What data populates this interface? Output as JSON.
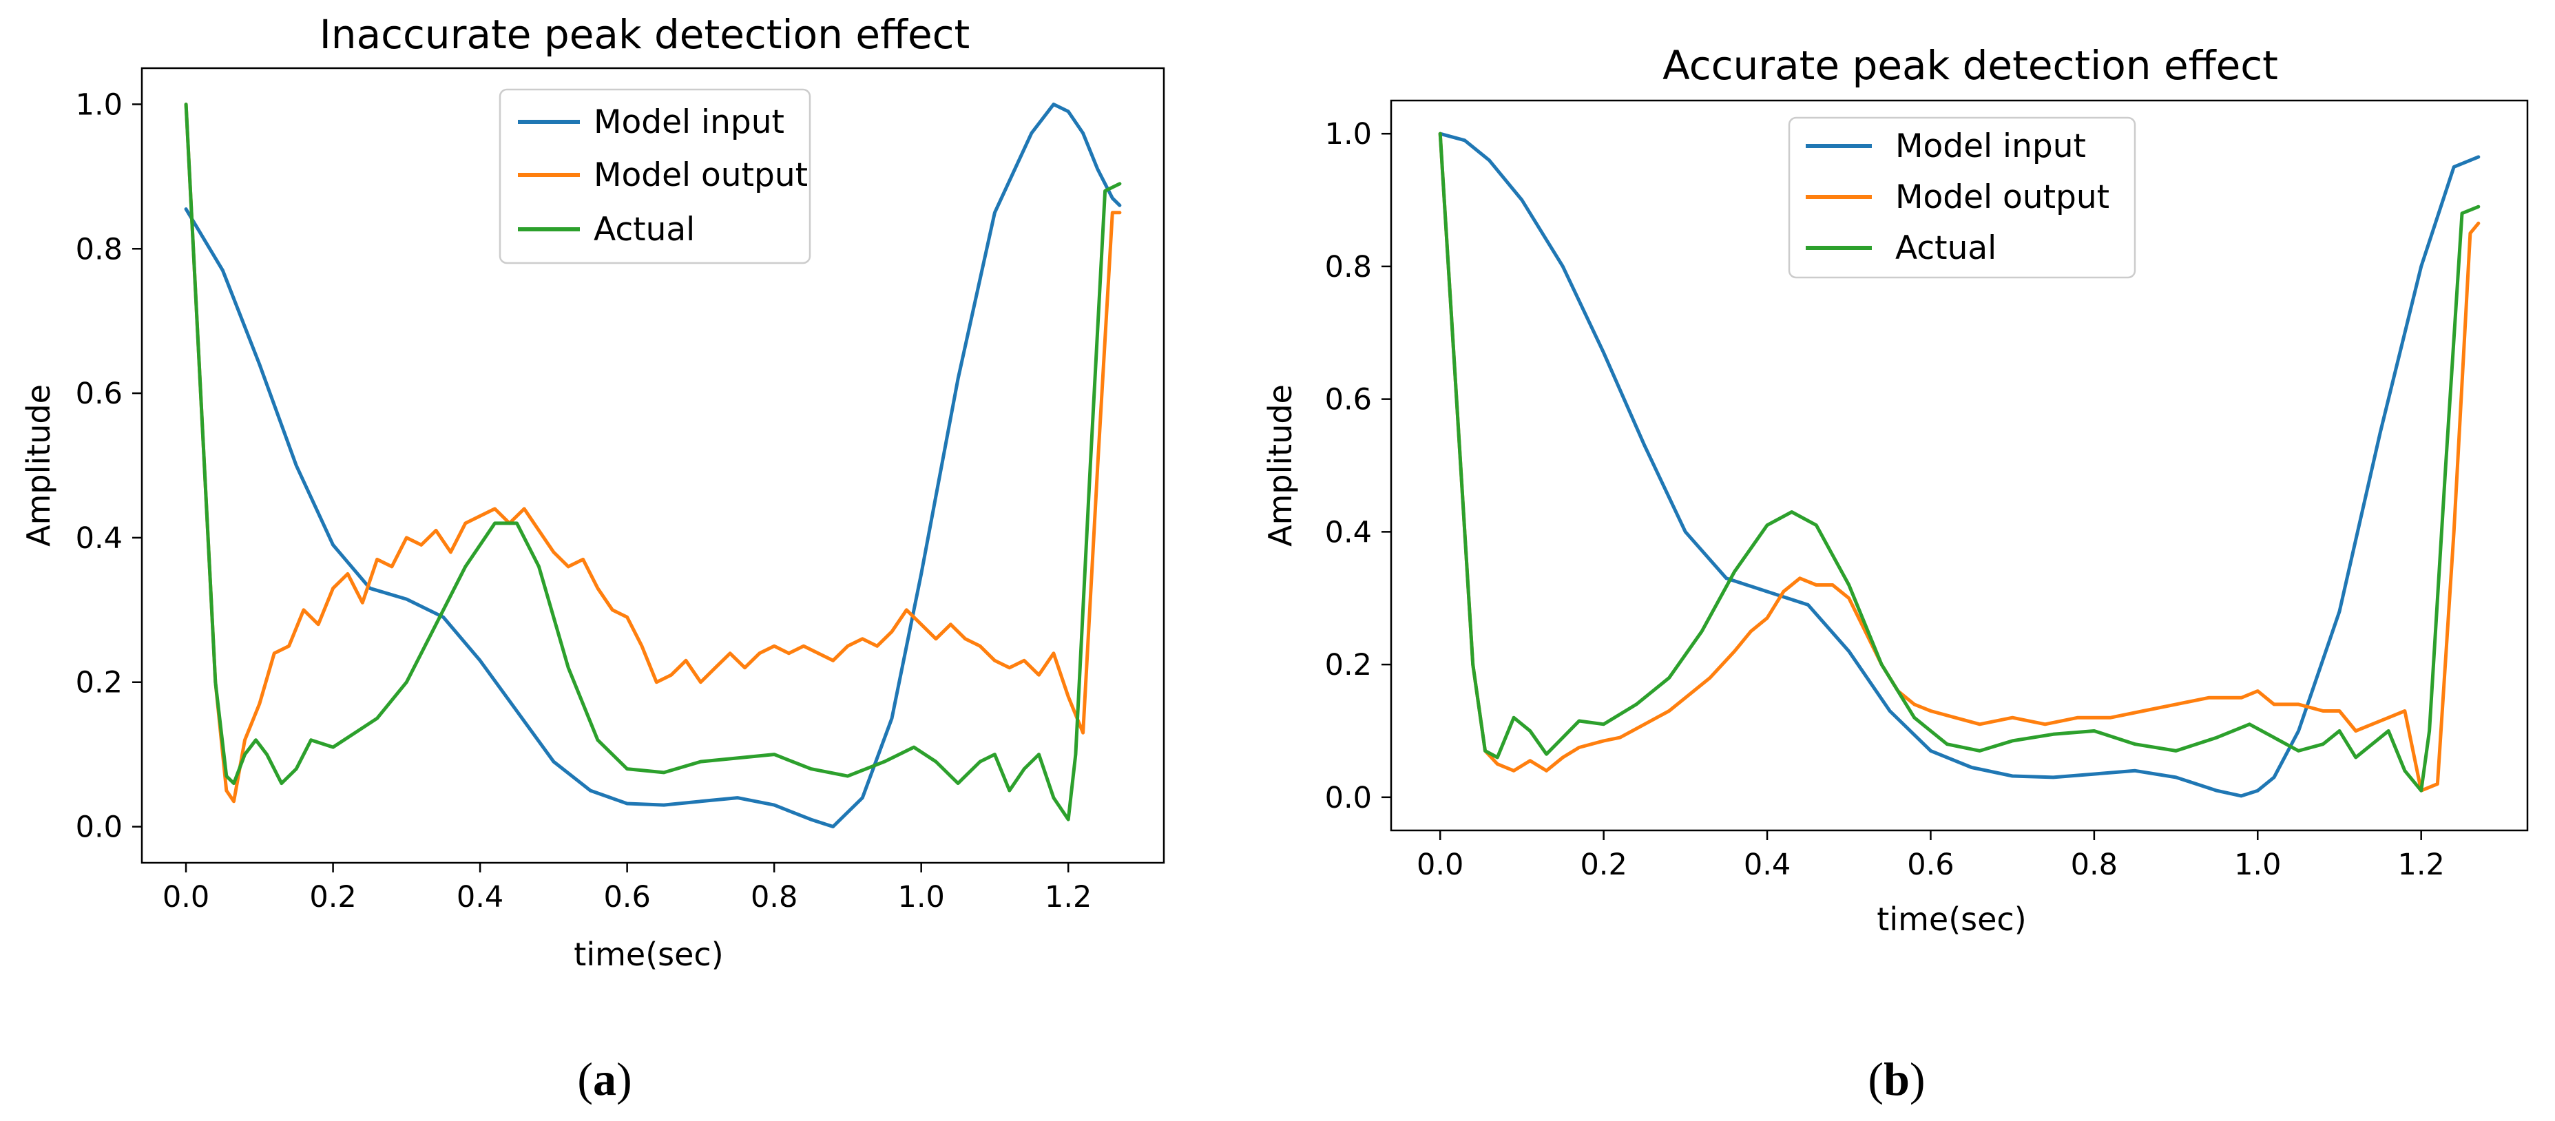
{
  "colors": {
    "model_input": "#1f77b4",
    "model_output": "#ff7f0e",
    "actual": "#2ca02c"
  },
  "chart_data": [
    {
      "type": "line",
      "panel_label": "a",
      "title": "Inaccurate peak detection effect",
      "xlabel": "time(sec)",
      "ylabel": "Amplitude",
      "xlim": [
        -0.06,
        1.33
      ],
      "ylim": [
        -0.05,
        1.05
      ],
      "xticks": [
        0.0,
        0.2,
        0.4,
        0.6,
        0.8,
        1.0,
        1.2
      ],
      "yticks": [
        0.0,
        0.2,
        0.4,
        0.6,
        0.8,
        1.0
      ],
      "xtick_labels": [
        "0.0",
        "0.2",
        "0.4",
        "0.6",
        "0.8",
        "1.0",
        "1.2"
      ],
      "ytick_labels": [
        "0.0",
        "0.2",
        "0.4",
        "0.6",
        "0.8",
        "1.0"
      ],
      "grid": false,
      "legend": "top-center",
      "series": [
        {
          "name": "Model input",
          "color_key": "model_input",
          "x": [
            0,
            0.05,
            0.1,
            0.15,
            0.2,
            0.25,
            0.3,
            0.35,
            0.4,
            0.45,
            0.5,
            0.55,
            0.6,
            0.65,
            0.7,
            0.75,
            0.8,
            0.85,
            0.88,
            0.92,
            0.96,
            1.0,
            1.05,
            1.1,
            1.15,
            1.18,
            1.2,
            1.22,
            1.24,
            1.26,
            1.27
          ],
          "y": [
            0.855,
            0.77,
            0.64,
            0.5,
            0.39,
            0.33,
            0.315,
            0.29,
            0.23,
            0.16,
            0.09,
            0.05,
            0.032,
            0.03,
            0.035,
            0.04,
            0.03,
            0.01,
            0.0,
            0.04,
            0.15,
            0.35,
            0.62,
            0.85,
            0.96,
            1.0,
            0.99,
            0.96,
            0.91,
            0.87,
            0.86
          ]
        },
        {
          "name": "Model output",
          "color_key": "model_output",
          "x": [
            0,
            0.02,
            0.04,
            0.055,
            0.065,
            0.08,
            0.1,
            0.12,
            0.14,
            0.16,
            0.18,
            0.2,
            0.22,
            0.24,
            0.26,
            0.28,
            0.3,
            0.32,
            0.34,
            0.36,
            0.38,
            0.4,
            0.42,
            0.44,
            0.46,
            0.48,
            0.5,
            0.52,
            0.54,
            0.56,
            0.58,
            0.6,
            0.62,
            0.64,
            0.66,
            0.68,
            0.7,
            0.72,
            0.74,
            0.76,
            0.78,
            0.8,
            0.82,
            0.84,
            0.86,
            0.88,
            0.9,
            0.92,
            0.94,
            0.96,
            0.98,
            1.0,
            1.02,
            1.04,
            1.06,
            1.08,
            1.1,
            1.12,
            1.14,
            1.16,
            1.18,
            1.2,
            1.22,
            1.24,
            1.26,
            1.27
          ],
          "y": [
            1.0,
            0.6,
            0.2,
            0.05,
            0.035,
            0.12,
            0.17,
            0.24,
            0.25,
            0.3,
            0.28,
            0.33,
            0.35,
            0.31,
            0.37,
            0.36,
            0.4,
            0.39,
            0.41,
            0.38,
            0.42,
            0.43,
            0.44,
            0.42,
            0.44,
            0.41,
            0.38,
            0.36,
            0.37,
            0.33,
            0.3,
            0.29,
            0.25,
            0.2,
            0.21,
            0.23,
            0.2,
            0.22,
            0.24,
            0.22,
            0.24,
            0.25,
            0.24,
            0.25,
            0.24,
            0.23,
            0.25,
            0.26,
            0.25,
            0.27,
            0.3,
            0.28,
            0.26,
            0.28,
            0.26,
            0.25,
            0.23,
            0.22,
            0.23,
            0.21,
            0.24,
            0.18,
            0.13,
            0.5,
            0.85,
            0.85
          ]
        },
        {
          "name": "Actual",
          "color_key": "actual",
          "x": [
            0,
            0.02,
            0.04,
            0.055,
            0.065,
            0.08,
            0.095,
            0.11,
            0.13,
            0.15,
            0.17,
            0.2,
            0.23,
            0.26,
            0.3,
            0.34,
            0.38,
            0.42,
            0.45,
            0.48,
            0.52,
            0.56,
            0.6,
            0.65,
            0.7,
            0.75,
            0.8,
            0.85,
            0.9,
            0.95,
            0.99,
            1.02,
            1.05,
            1.08,
            1.1,
            1.12,
            1.14,
            1.16,
            1.18,
            1.2,
            1.21,
            1.23,
            1.25,
            1.27
          ],
          "y": [
            1.0,
            0.6,
            0.2,
            0.07,
            0.06,
            0.1,
            0.12,
            0.1,
            0.06,
            0.08,
            0.12,
            0.11,
            0.13,
            0.15,
            0.2,
            0.28,
            0.36,
            0.42,
            0.42,
            0.36,
            0.22,
            0.12,
            0.08,
            0.075,
            0.09,
            0.095,
            0.1,
            0.08,
            0.07,
            0.09,
            0.11,
            0.09,
            0.06,
            0.09,
            0.1,
            0.05,
            0.08,
            0.1,
            0.04,
            0.01,
            0.1,
            0.5,
            0.88,
            0.89
          ]
        }
      ]
    },
    {
      "type": "line",
      "panel_label": "b",
      "title": "Accurate peak detection effect",
      "xlabel": "time(sec)",
      "ylabel": "Amplitude",
      "xlim": [
        -0.06,
        1.33
      ],
      "ylim": [
        -0.05,
        1.05
      ],
      "xticks": [
        0.0,
        0.2,
        0.4,
        0.6,
        0.8,
        1.0,
        1.2
      ],
      "yticks": [
        0.0,
        0.2,
        0.4,
        0.6,
        0.8,
        1.0
      ],
      "xtick_labels": [
        "0.0",
        "0.2",
        "0.4",
        "0.6",
        "0.8",
        "1.0",
        "1.2"
      ],
      "ytick_labels": [
        "0.0",
        "0.2",
        "0.4",
        "0.6",
        "0.8",
        "1.0"
      ],
      "grid": false,
      "legend": "top-center",
      "series": [
        {
          "name": "Model input",
          "color_key": "model_input",
          "x": [
            0,
            0.03,
            0.06,
            0.1,
            0.15,
            0.2,
            0.25,
            0.3,
            0.35,
            0.4,
            0.45,
            0.5,
            0.55,
            0.6,
            0.65,
            0.7,
            0.75,
            0.8,
            0.85,
            0.9,
            0.95,
            0.98,
            1.0,
            1.02,
            1.05,
            1.1,
            1.15,
            1.2,
            1.24,
            1.27
          ],
          "y": [
            1.0,
            0.99,
            0.96,
            0.9,
            0.8,
            0.67,
            0.53,
            0.4,
            0.33,
            0.31,
            0.29,
            0.22,
            0.13,
            0.07,
            0.045,
            0.032,
            0.03,
            0.035,
            0.04,
            0.03,
            0.01,
            0.002,
            0.01,
            0.03,
            0.1,
            0.28,
            0.55,
            0.8,
            0.95,
            0.965
          ]
        },
        {
          "name": "Model output",
          "color_key": "model_output",
          "x": [
            0,
            0.02,
            0.04,
            0.055,
            0.07,
            0.09,
            0.11,
            0.13,
            0.15,
            0.17,
            0.2,
            0.22,
            0.25,
            0.28,
            0.3,
            0.33,
            0.36,
            0.38,
            0.4,
            0.42,
            0.44,
            0.46,
            0.48,
            0.5,
            0.52,
            0.54,
            0.56,
            0.58,
            0.6,
            0.63,
            0.66,
            0.7,
            0.74,
            0.78,
            0.82,
            0.86,
            0.9,
            0.94,
            0.98,
            1.0,
            1.02,
            1.05,
            1.08,
            1.1,
            1.12,
            1.14,
            1.16,
            1.18,
            1.2,
            1.22,
            1.24,
            1.26,
            1.27
          ],
          "y": [
            1.0,
            0.6,
            0.2,
            0.07,
            0.05,
            0.04,
            0.055,
            0.04,
            0.06,
            0.075,
            0.085,
            0.09,
            0.11,
            0.13,
            0.15,
            0.18,
            0.22,
            0.25,
            0.27,
            0.31,
            0.33,
            0.32,
            0.32,
            0.3,
            0.25,
            0.2,
            0.16,
            0.14,
            0.13,
            0.12,
            0.11,
            0.12,
            0.11,
            0.12,
            0.12,
            0.13,
            0.14,
            0.15,
            0.15,
            0.16,
            0.14,
            0.14,
            0.13,
            0.13,
            0.1,
            0.11,
            0.12,
            0.13,
            0.01,
            0.02,
            0.4,
            0.85,
            0.865
          ]
        },
        {
          "name": "Actual",
          "color_key": "actual",
          "x": [
            0,
            0.02,
            0.04,
            0.055,
            0.07,
            0.09,
            0.11,
            0.13,
            0.15,
            0.17,
            0.2,
            0.24,
            0.28,
            0.32,
            0.36,
            0.4,
            0.43,
            0.46,
            0.5,
            0.54,
            0.58,
            0.62,
            0.66,
            0.7,
            0.75,
            0.8,
            0.85,
            0.9,
            0.95,
            0.99,
            1.02,
            1.05,
            1.08,
            1.1,
            1.12,
            1.14,
            1.16,
            1.18,
            1.2,
            1.21,
            1.23,
            1.25,
            1.27
          ],
          "y": [
            1.0,
            0.6,
            0.2,
            0.07,
            0.06,
            0.12,
            0.1,
            0.065,
            0.09,
            0.115,
            0.11,
            0.14,
            0.18,
            0.25,
            0.34,
            0.41,
            0.43,
            0.41,
            0.32,
            0.2,
            0.12,
            0.08,
            0.07,
            0.085,
            0.095,
            0.1,
            0.08,
            0.07,
            0.09,
            0.11,
            0.09,
            0.07,
            0.08,
            0.1,
            0.06,
            0.08,
            0.1,
            0.04,
            0.01,
            0.1,
            0.5,
            0.88,
            0.89
          ]
        }
      ]
    }
  ]
}
